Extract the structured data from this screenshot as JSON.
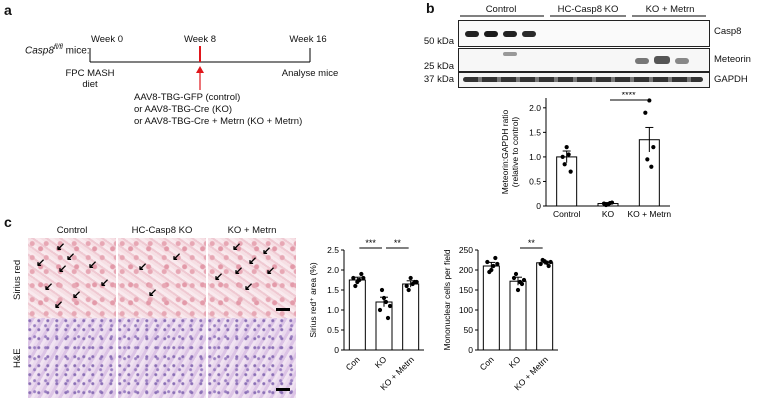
{
  "panel_labels": {
    "a": "a",
    "b": "b",
    "c": "c"
  },
  "timeline": {
    "mice_label": "Casp8",
    "mice_superscript": "fl/fl",
    "mice_suffix": " mice:",
    "week0": "Week 0",
    "week8": "Week 8",
    "week16": "Week 16",
    "diet_line1": "FPC MASH",
    "diet_line2": "diet",
    "analyse": "Analyse mice",
    "injection_lines": [
      "AAV8-TBG-GFP (control)",
      "or AAV8-TBG-Cre (KO)",
      "or AAV8-TBG-Cre + Metrn (KO + Metrn)"
    ],
    "accent_color": "#e0161b"
  },
  "blot": {
    "groups": [
      "Control",
      "HC-Casp8 KO",
      "KO + Metrn"
    ],
    "mw_markers": [
      "50 kDa",
      "25 kDa",
      "37 kDa"
    ],
    "proteins": [
      "Casp8",
      "Meteorin",
      "GAPDH"
    ]
  },
  "histology": {
    "columns": [
      "Control",
      "HC-Casp8 KO",
      "KO + Metrn"
    ],
    "rows": [
      "Sirius red",
      "H&E"
    ]
  },
  "chart_data": [
    {
      "type": "bar",
      "ylabel_line1": "Meteorin:GAPDH ratio",
      "ylabel_line2": "(relative to control)",
      "categories": [
        "Control",
        "KO",
        "KO + Metrn"
      ],
      "values": [
        1.0,
        0.05,
        1.35
      ],
      "errors": [
        0.12,
        0.02,
        0.25
      ],
      "points": [
        [
          1.0,
          1.2,
          0.7,
          0.85,
          1.05
        ],
        [
          0.05,
          0.03,
          0.07,
          0.02,
          0.06
        ],
        [
          1.9,
          2.15,
          1.2,
          0.95,
          0.8
        ]
      ],
      "ylim": [
        0,
        2.2
      ],
      "yticks": [
        "0",
        "0.5",
        "1.0",
        "1.5",
        "2.0"
      ],
      "significance": [
        {
          "from": "KO",
          "to": "KO + Metrn",
          "label": "****"
        }
      ]
    },
    {
      "type": "bar",
      "ylabel": "Sirius red⁺ area (%)",
      "categories": [
        "Con",
        "KO",
        "KO + Metrn"
      ],
      "values": [
        1.75,
        1.2,
        1.65
      ],
      "errors": [
        0.07,
        0.12,
        0.08
      ],
      "points": [
        [
          1.8,
          1.7,
          1.9,
          1.6,
          1.75,
          1.8
        ],
        [
          1.0,
          1.3,
          0.8,
          1.5,
          1.2,
          1.1
        ],
        [
          1.6,
          1.8,
          1.7,
          1.5,
          1.65,
          1.7
        ]
      ],
      "ylim": [
        0,
        2.5
      ],
      "yticks": [
        "0",
        "0.5",
        "1.0",
        "1.5",
        "2.0",
        "2.5"
      ],
      "significance": [
        {
          "from": "Con",
          "to": "KO",
          "label": "***"
        },
        {
          "from": "KO",
          "to": "KO + Metrn",
          "label": "**"
        }
      ]
    },
    {
      "type": "bar",
      "ylabel": "Mononuclear cells per field",
      "categories": [
        "Con",
        "KO",
        "KO + Metrn"
      ],
      "values": [
        210,
        172,
        218
      ],
      "errors": [
        9,
        10,
        4
      ],
      "points": [
        [
          220,
          200,
          230,
          195,
          210,
          215
        ],
        [
          180,
          150,
          165,
          190,
          170,
          175
        ],
        [
          215,
          222,
          210,
          225,
          218,
          220
        ]
      ],
      "ylim": [
        0,
        250
      ],
      "yticks": [
        "0",
        "50",
        "100",
        "150",
        "200",
        "250"
      ],
      "significance": [
        {
          "from": "KO",
          "to": "KO + Metrn",
          "label": "**"
        }
      ]
    }
  ]
}
